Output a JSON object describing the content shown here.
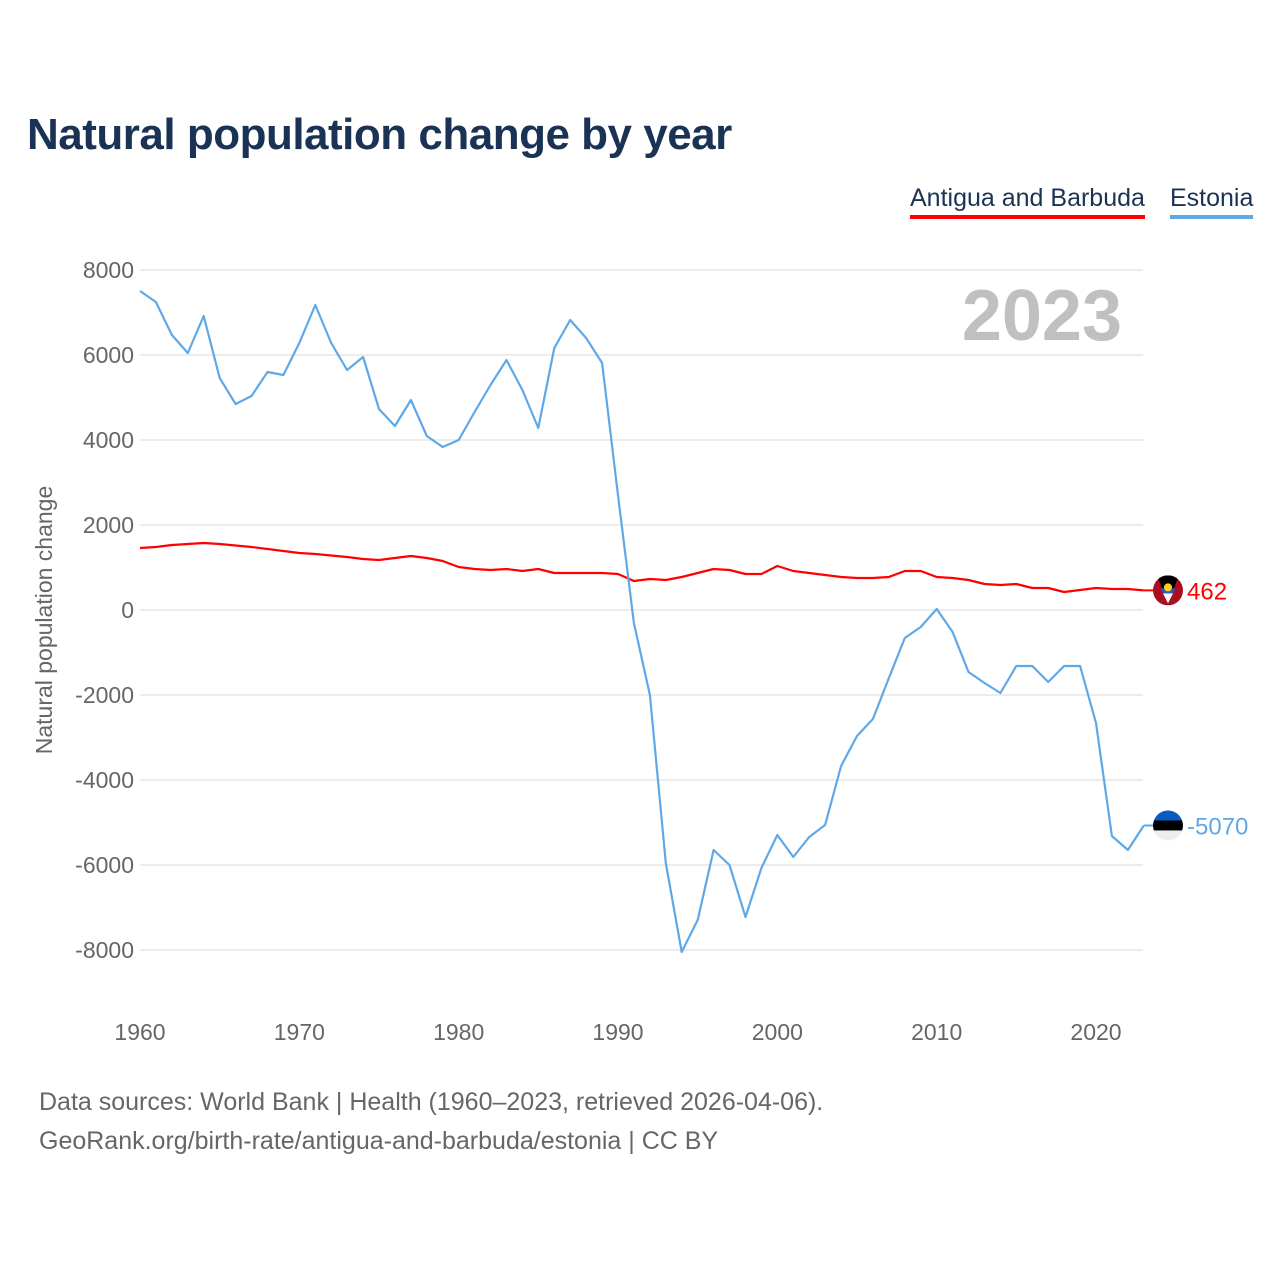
{
  "chart_data": {
    "type": "line",
    "title": "Natural population change by year",
    "xlabel": "",
    "ylabel": "Natural population change",
    "ylim": [
      -8000,
      8000
    ],
    "xlim": [
      1960,
      2023
    ],
    "yticks": [
      "8000",
      "6000",
      "4000",
      "2000",
      "0",
      "-2000",
      "-4000",
      "-6000",
      "-8000"
    ],
    "ytick_values": [
      8000,
      6000,
      4000,
      2000,
      0,
      -2000,
      -4000,
      -6000,
      -8000
    ],
    "xticks": [
      "1960",
      "1970",
      "1980",
      "1990",
      "2000",
      "2010",
      "2020"
    ],
    "xtick_values": [
      1960,
      1970,
      1980,
      1990,
      2000,
      2010,
      2020
    ],
    "grid": true,
    "legend": "top-right",
    "year_label": "2023",
    "x": [
      1960,
      1961,
      1962,
      1963,
      1964,
      1965,
      1966,
      1967,
      1968,
      1969,
      1970,
      1971,
      1972,
      1973,
      1974,
      1975,
      1976,
      1977,
      1978,
      1979,
      1980,
      1981,
      1982,
      1983,
      1984,
      1985,
      1986,
      1987,
      1988,
      1989,
      1990,
      1991,
      1992,
      1993,
      1994,
      1995,
      1996,
      1997,
      1998,
      1999,
      2000,
      2001,
      2002,
      2003,
      2004,
      2005,
      2006,
      2007,
      2008,
      2009,
      2010,
      2011,
      2012,
      2013,
      2014,
      2015,
      2016,
      2017,
      2018,
      2019,
      2020,
      2021,
      2022,
      2023
    ],
    "series": [
      {
        "name": "Antigua and Barbuda",
        "color": "#ff0000",
        "end_label": "462",
        "values": [
          1459,
          1482,
          1529,
          1553,
          1576,
          1553,
          1518,
          1482,
          1435,
          1388,
          1341,
          1318,
          1282,
          1247,
          1200,
          1176,
          1224,
          1270,
          1224,
          1153,
          1012,
          965,
          941,
          965,
          918,
          965,
          870,
          870,
          870,
          870,
          847,
          682,
          729,
          706,
          776,
          870,
          965,
          941,
          847,
          847,
          1035,
          918,
          870,
          823,
          776,
          753,
          753,
          776,
          918,
          918,
          776,
          753,
          706,
          612,
          588,
          612,
          518,
          518,
          424,
          471,
          518,
          494,
          494,
          462
        ]
      },
      {
        "name": "Estonia",
        "color": "#5fa8e8",
        "end_label": "-5070",
        "values": [
          7506,
          7247,
          6471,
          6047,
          6918,
          5459,
          4847,
          5035,
          5600,
          5529,
          6282,
          7176,
          6282,
          5647,
          5953,
          4729,
          4329,
          4941,
          4094,
          3835,
          4000,
          4659,
          5294,
          5882,
          5176,
          4282,
          6165,
          6824,
          6400,
          5812,
          2700,
          -306,
          -2000,
          -5953,
          -8047,
          -7294,
          -5647,
          -6000,
          -7224,
          -6071,
          -5294,
          -5812,
          -5341,
          -5059,
          -3670,
          -2965,
          -2565,
          -1600,
          -659,
          -400,
          24,
          -518,
          -1459,
          -1718,
          -1953,
          -1318,
          -1318,
          -1694,
          -1318,
          -1318,
          -2659,
          -5318,
          -5647,
          -5070
        ]
      }
    ]
  },
  "footer": {
    "line1": "Data sources: World Bank | Health (1960–2023, retrieved 2026-04-06).",
    "line2": "GeoRank.org/birth-rate/antigua-and-barbuda/estonia | CC BY"
  }
}
